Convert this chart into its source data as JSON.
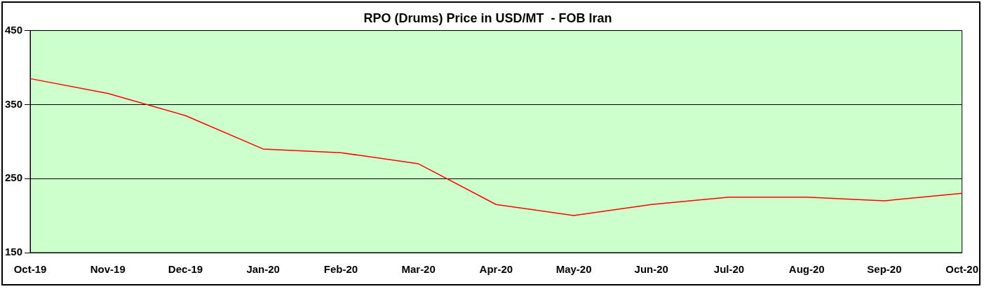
{
  "chart_data": {
    "type": "line",
    "title": "RPO (Drums) Price in USD/MT  - FOB Iran",
    "categories": [
      "Oct-19",
      "Nov-19",
      "Dec-19",
      "Jan-20",
      "Feb-20",
      "Mar-20",
      "Apr-20",
      "May-20",
      "Jun-20",
      "Jul-20",
      "Aug-20",
      "Sep-20",
      "Oct-20"
    ],
    "series": [
      {
        "color": "#ff0000",
        "values": [
          385,
          365,
          335,
          290,
          285,
          270,
          215,
          200,
          215,
          225,
          225,
          220,
          230
        ]
      }
    ],
    "ylim": [
      150,
      450
    ],
    "yticks": [
      150,
      250,
      350,
      450
    ],
    "grid": "y",
    "legend": false,
    "marker": "none",
    "line_style": "solid"
  }
}
